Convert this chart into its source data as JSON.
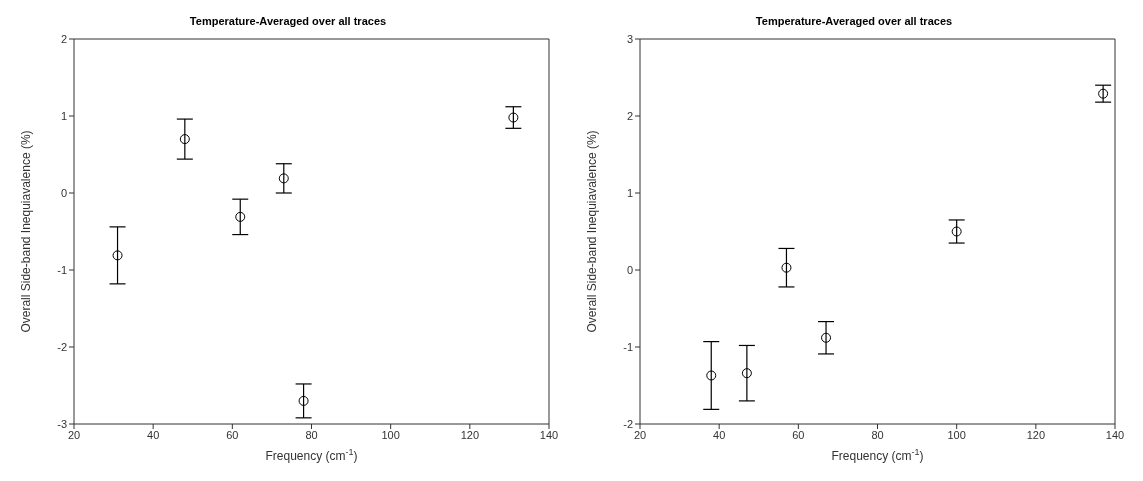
{
  "chart_data": [
    {
      "type": "scatter",
      "title": "Temperature-Averaged over all traces",
      "xlabel": "Frequency (cm$^{-1}$)",
      "ylabel": "Overall Side-band Inequiavalence (%)",
      "x": [
        31,
        48,
        62,
        73,
        78,
        131
      ],
      "values": [
        -0.81,
        0.7,
        -0.31,
        0.19,
        -2.7,
        0.98
      ],
      "errors": [
        0.37,
        0.26,
        0.23,
        0.19,
        0.22,
        0.14
      ],
      "color": "#000000",
      "marker": "circle",
      "xlim": [
        20,
        140
      ],
      "xticks": [
        20,
        40,
        60,
        80,
        100,
        120,
        140
      ],
      "ylim": [
        -3,
        2
      ],
      "yticks": [
        -3,
        -2,
        -1,
        0,
        1,
        2
      ]
    },
    {
      "type": "scatter",
      "title": "Temperature-Averaged over all traces",
      "xlabel": "Frequency (cm$^{-1}$)",
      "ylabel": "Overall Side-band Inequiavalence (%)",
      "x": [
        38,
        47,
        57,
        67,
        100,
        137
      ],
      "values": [
        -1.37,
        -1.34,
        0.03,
        -0.88,
        0.5,
        2.29
      ],
      "errors": [
        0.44,
        0.36,
        0.25,
        0.21,
        0.15,
        0.11
      ],
      "color": "#000000",
      "marker": "circle",
      "xlim": [
        20,
        140
      ],
      "xticks": [
        20,
        40,
        60,
        80,
        100,
        120,
        140
      ],
      "ylim": [
        -2,
        3
      ],
      "yticks": [
        -2,
        -1,
        0,
        1,
        2,
        3
      ]
    }
  ]
}
